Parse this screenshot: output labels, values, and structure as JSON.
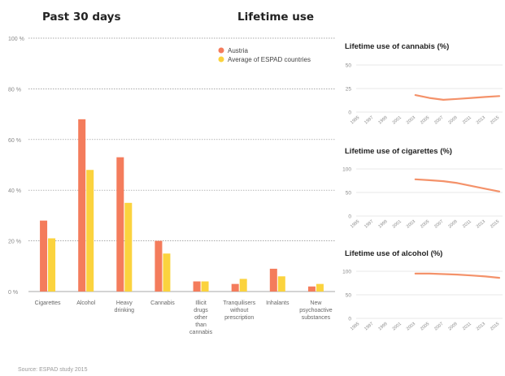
{
  "header": {
    "left_title": "Past 30 days",
    "right_title": "Lifetime use"
  },
  "source": "Source: ESPAD study 2015",
  "colors": {
    "austria": "#f47c5c",
    "espad": "#fbd33e",
    "line": "#f4926a",
    "grid": "#8c8c8c",
    "axis_text": "#8a8a8a"
  },
  "chart_data": [
    {
      "type": "bar",
      "title": "Past 30 days",
      "categories": [
        [
          "Cigarettes"
        ],
        [
          "Alcohol"
        ],
        [
          "Heavy",
          "drinking"
        ],
        [
          "Cannabis"
        ],
        [
          "Illicit",
          "drugs",
          "other",
          "than",
          "cannabis"
        ],
        [
          "Tranquilisers",
          "without",
          "prescription"
        ],
        [
          "Inhalants"
        ],
        [
          "New",
          "psychoactive",
          "substances"
        ]
      ],
      "series": [
        {
          "name": "Austria",
          "values": [
            28,
            68,
            53,
            20,
            4,
            3,
            9,
            2
          ]
        },
        {
          "name": "Average of ESPAD countries",
          "values": [
            21,
            48,
            35,
            15,
            4,
            5,
            6,
            3
          ]
        }
      ],
      "yticks": [
        "0 %",
        "20 %",
        "40 %",
        "60 %",
        "80 %",
        "100 %"
      ],
      "ylim": [
        0,
        100
      ],
      "legend": "top-right",
      "grid": true
    },
    {
      "type": "line",
      "title": "Lifetime use of cannabis (%)",
      "x": [
        "1995",
        "1997",
        "1999",
        "2001",
        "2003",
        "2005",
        "2007",
        "2009",
        "2011",
        "2013",
        "2015"
      ],
      "series": [
        {
          "values": [
            null,
            null,
            null,
            null,
            18,
            15,
            13,
            14,
            15,
            16,
            17
          ]
        }
      ],
      "yticks": [
        "0",
        "25",
        "50"
      ],
      "ylim": [
        0,
        50
      ]
    },
    {
      "type": "line",
      "title": "Lifetime use of cigarettes (%)",
      "x": [
        "1995",
        "1997",
        "1999",
        "2001",
        "2003",
        "2005",
        "2007",
        "2009",
        "2011",
        "2013",
        "2015"
      ],
      "series": [
        {
          "values": [
            null,
            null,
            null,
            null,
            78,
            76,
            74,
            70,
            64,
            58,
            52
          ]
        }
      ],
      "yticks": [
        "0",
        "50",
        "100"
      ],
      "ylim": [
        0,
        100
      ]
    },
    {
      "type": "line",
      "title": "Lifetime use of alcohol (%)",
      "x": [
        "1995",
        "1997",
        "1999",
        "2001",
        "2003",
        "2005",
        "2007",
        "2009",
        "2011",
        "2013",
        "2015"
      ],
      "series": [
        {
          "values": [
            null,
            null,
            null,
            null,
            95,
            95,
            94,
            93,
            91,
            89,
            86
          ]
        }
      ],
      "yticks": [
        "0",
        "50",
        "100"
      ],
      "ylim": [
        0,
        100
      ]
    }
  ]
}
